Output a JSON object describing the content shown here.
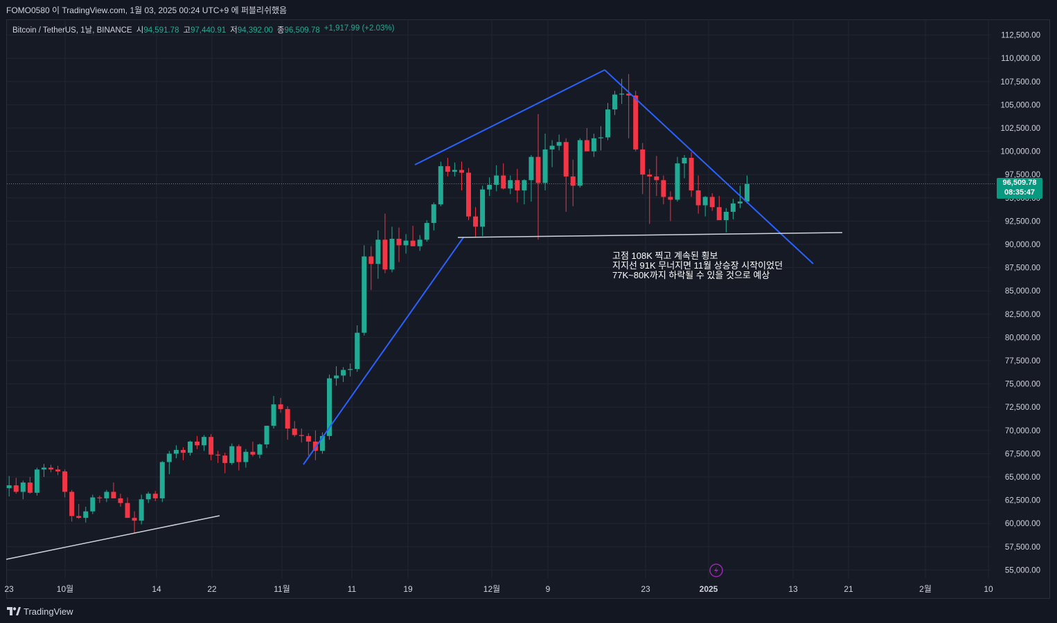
{
  "header": {
    "publish_text": "FOMO0580 이 TradingView.com, 1월 03, 2025 00:24 UTC+9 에 퍼블리쉬했음"
  },
  "legend": {
    "symbol": "Bitcoin / TetherUS, 1날, BINANCE",
    "open_label": "시",
    "open_value": "94,591.78",
    "high_label": "고",
    "high_value": "97,440.91",
    "low_label": "저",
    "low_value": "94,392.00",
    "close_label": "종",
    "close_value": "96,509.78",
    "change": "+1,917.99 (+2.03%)"
  },
  "price_tag": {
    "price": "96,509.78",
    "countdown": "08:35:47"
  },
  "annotation": {
    "line1": "고점 108K 찍고 계속된 횡보",
    "line2": "지지선 91K 무너지면 11월 상승장 시작이었던",
    "line3": "77K~80K까지 하락될 수 있을 것으로 예상"
  },
  "footer": {
    "brand": "TradingView"
  },
  "colors": {
    "up": "#22ab94",
    "down": "#f23645",
    "trendline_blue": "#2962ff",
    "support_line": "#d1d4dc",
    "background": "#161a25",
    "grid": "#232632"
  },
  "chart_data": {
    "type": "candlestick",
    "symbol": "BTC/USDT",
    "interval": "1D",
    "ylim": [
      54000,
      113500
    ],
    "y_ticks": [
      "112,500.00",
      "110,000.00",
      "107,500.00",
      "105,000.00",
      "102,500.00",
      "100,000.00",
      "97,500.00",
      "95,000.00",
      "92,500.00",
      "90,000.00",
      "87,500.00",
      "85,000.00",
      "82,500.00",
      "80,000.00",
      "77,500.00",
      "75,000.00",
      "72,500.00",
      "70,000.00",
      "67,500.00",
      "65,000.00",
      "62,500.00",
      "60,000.00",
      "57,500.00",
      "55,000.00"
    ],
    "x_ticks": [
      "23",
      "10월",
      "14",
      "22",
      "11월",
      "11",
      "19",
      "12월",
      "9",
      "23",
      "2025",
      "13",
      "21",
      "2월",
      "10"
    ],
    "x_tick_bold": [
      "2025"
    ],
    "current_price": 96509.78,
    "candles": [
      {
        "o": 63800,
        "h": 65100,
        "l": 62900,
        "c": 64100
      },
      {
        "o": 64100,
        "h": 64900,
        "l": 63200,
        "c": 63400
      },
      {
        "o": 63400,
        "h": 64600,
        "l": 62600,
        "c": 64400
      },
      {
        "o": 64400,
        "h": 65000,
        "l": 63200,
        "c": 63300
      },
      {
        "o": 63300,
        "h": 66000,
        "l": 63000,
        "c": 65800
      },
      {
        "o": 65800,
        "h": 66400,
        "l": 65000,
        "c": 66000
      },
      {
        "o": 66000,
        "h": 66300,
        "l": 65500,
        "c": 65800
      },
      {
        "o": 65800,
        "h": 66200,
        "l": 65200,
        "c": 65600
      },
      {
        "o": 65600,
        "h": 65800,
        "l": 62800,
        "c": 63400
      },
      {
        "o": 63400,
        "h": 63600,
        "l": 60200,
        "c": 60800
      },
      {
        "o": 60800,
        "h": 62100,
        "l": 60500,
        "c": 60600
      },
      {
        "o": 60600,
        "h": 61800,
        "l": 60100,
        "c": 61300
      },
      {
        "o": 61300,
        "h": 63100,
        "l": 61000,
        "c": 62800
      },
      {
        "o": 62800,
        "h": 63000,
        "l": 62200,
        "c": 62700
      },
      {
        "o": 62700,
        "h": 63600,
        "l": 62300,
        "c": 63400
      },
      {
        "o": 63400,
        "h": 64400,
        "l": 62900,
        "c": 62700
      },
      {
        "o": 62700,
        "h": 63200,
        "l": 61800,
        "c": 62200
      },
      {
        "o": 62200,
        "h": 62800,
        "l": 60800,
        "c": 60600
      },
      {
        "o": 60600,
        "h": 61300,
        "l": 58900,
        "c": 60300
      },
      {
        "o": 60300,
        "h": 63100,
        "l": 59900,
        "c": 62600
      },
      {
        "o": 62600,
        "h": 63400,
        "l": 62200,
        "c": 63200
      },
      {
        "o": 63200,
        "h": 63500,
        "l": 62400,
        "c": 62700
      },
      {
        "o": 62700,
        "h": 66700,
        "l": 62300,
        "c": 66600
      },
      {
        "o": 66600,
        "h": 67800,
        "l": 65300,
        "c": 67500
      },
      {
        "o": 67500,
        "h": 68400,
        "l": 67000,
        "c": 67900
      },
      {
        "o": 67900,
        "h": 68200,
        "l": 66800,
        "c": 67600
      },
      {
        "o": 67600,
        "h": 68900,
        "l": 67300,
        "c": 68800
      },
      {
        "o": 68800,
        "h": 69400,
        "l": 68000,
        "c": 68400
      },
      {
        "o": 68400,
        "h": 69500,
        "l": 67800,
        "c": 69300
      },
      {
        "o": 69300,
        "h": 69600,
        "l": 66800,
        "c": 67400
      },
      {
        "o": 67400,
        "h": 67800,
        "l": 66500,
        "c": 67300
      },
      {
        "o": 67300,
        "h": 67600,
        "l": 65400,
        "c": 66500
      },
      {
        "o": 66500,
        "h": 68600,
        "l": 66300,
        "c": 68300
      },
      {
        "o": 68300,
        "h": 68500,
        "l": 65700,
        "c": 66600
      },
      {
        "o": 66600,
        "h": 68000,
        "l": 66000,
        "c": 67700
      },
      {
        "o": 67700,
        "h": 68800,
        "l": 67200,
        "c": 67400
      },
      {
        "o": 67400,
        "h": 68600,
        "l": 67000,
        "c": 68500
      },
      {
        "o": 68500,
        "h": 70500,
        "l": 68100,
        "c": 70500
      },
      {
        "o": 70500,
        "h": 73700,
        "l": 70200,
        "c": 72800
      },
      {
        "o": 72800,
        "h": 73500,
        "l": 71900,
        "c": 72300
      },
      {
        "o": 72300,
        "h": 72600,
        "l": 69000,
        "c": 70200
      },
      {
        "o": 70200,
        "h": 71000,
        "l": 69300,
        "c": 69500
      },
      {
        "o": 69500,
        "h": 70200,
        "l": 68700,
        "c": 69400
      },
      {
        "o": 69400,
        "h": 69700,
        "l": 67300,
        "c": 68800
      },
      {
        "o": 68800,
        "h": 70000,
        "l": 66800,
        "c": 67800
      },
      {
        "o": 67800,
        "h": 69800,
        "l": 67500,
        "c": 69400
      },
      {
        "o": 69400,
        "h": 76000,
        "l": 69000,
        "c": 75600
      },
      {
        "o": 75600,
        "h": 76900,
        "l": 74800,
        "c": 75900
      },
      {
        "o": 75900,
        "h": 76800,
        "l": 75200,
        "c": 76500
      },
      {
        "o": 76500,
        "h": 77200,
        "l": 75800,
        "c": 76600
      },
      {
        "o": 76600,
        "h": 81300,
        "l": 76300,
        "c": 80500
      },
      {
        "o": 80500,
        "h": 89900,
        "l": 80200,
        "c": 88700
      },
      {
        "o": 88700,
        "h": 89800,
        "l": 85100,
        "c": 87900
      },
      {
        "o": 87900,
        "h": 91500,
        "l": 86300,
        "c": 90500
      },
      {
        "o": 90500,
        "h": 93300,
        "l": 86900,
        "c": 87300
      },
      {
        "o": 87300,
        "h": 91900,
        "l": 87000,
        "c": 90600
      },
      {
        "o": 90600,
        "h": 91800,
        "l": 88100,
        "c": 89900
      },
      {
        "o": 89900,
        "h": 91100,
        "l": 89000,
        "c": 90400
      },
      {
        "o": 90400,
        "h": 92000,
        "l": 89800,
        "c": 89800
      },
      {
        "o": 89800,
        "h": 91000,
        "l": 89300,
        "c": 90500
      },
      {
        "o": 90500,
        "h": 92600,
        "l": 90300,
        "c": 92300
      },
      {
        "o": 92300,
        "h": 94500,
        "l": 91500,
        "c": 94300
      },
      {
        "o": 94300,
        "h": 98900,
        "l": 94100,
        "c": 98400
      },
      {
        "o": 98400,
        "h": 99300,
        "l": 97300,
        "c": 97800
      },
      {
        "o": 97800,
        "h": 98800,
        "l": 97300,
        "c": 98000
      },
      {
        "o": 98000,
        "h": 98900,
        "l": 95800,
        "c": 97700
      },
      {
        "o": 97700,
        "h": 98200,
        "l": 92600,
        "c": 93000
      },
      {
        "o": 93000,
        "h": 94000,
        "l": 90800,
        "c": 91900
      },
      {
        "o": 91900,
        "h": 96300,
        "l": 90900,
        "c": 95900
      },
      {
        "o": 95900,
        "h": 97200,
        "l": 95200,
        "c": 96400
      },
      {
        "o": 96400,
        "h": 98500,
        "l": 95700,
        "c": 97400
      },
      {
        "o": 97400,
        "h": 98700,
        "l": 95900,
        "c": 96000
      },
      {
        "o": 96000,
        "h": 97400,
        "l": 95400,
        "c": 96900
      },
      {
        "o": 96900,
        "h": 98100,
        "l": 94500,
        "c": 95800
      },
      {
        "o": 95800,
        "h": 97000,
        "l": 94300,
        "c": 96900
      },
      {
        "o": 96900,
        "h": 99600,
        "l": 94600,
        "c": 99400
      },
      {
        "o": 99400,
        "h": 104000,
        "l": 90500,
        "c": 96600
      },
      {
        "o": 96600,
        "h": 101900,
        "l": 95800,
        "c": 100200
      },
      {
        "o": 100200,
        "h": 101200,
        "l": 98300,
        "c": 100600
      },
      {
        "o": 100600,
        "h": 101800,
        "l": 100100,
        "c": 101000
      },
      {
        "o": 101000,
        "h": 101400,
        "l": 93500,
        "c": 97300
      },
      {
        "o": 97300,
        "h": 99100,
        "l": 94100,
        "c": 96300
      },
      {
        "o": 96300,
        "h": 101400,
        "l": 96100,
        "c": 101200
      },
      {
        "o": 101200,
        "h": 102500,
        "l": 100300,
        "c": 100000
      },
      {
        "o": 100000,
        "h": 101900,
        "l": 99400,
        "c": 101400
      },
      {
        "o": 101400,
        "h": 102700,
        "l": 100100,
        "c": 101500
      },
      {
        "o": 101500,
        "h": 105200,
        "l": 101200,
        "c": 104500
      },
      {
        "o": 104500,
        "h": 106500,
        "l": 103900,
        "c": 106100
      },
      {
        "o": 106100,
        "h": 107800,
        "l": 105100,
        "c": 106200
      },
      {
        "o": 106200,
        "h": 108300,
        "l": 101400,
        "c": 106000
      },
      {
        "o": 106000,
        "h": 106500,
        "l": 100000,
        "c": 100200
      },
      {
        "o": 100200,
        "h": 100900,
        "l": 95400,
        "c": 97500
      },
      {
        "o": 97500,
        "h": 98100,
        "l": 92200,
        "c": 97300
      },
      {
        "o": 97300,
        "h": 99500,
        "l": 95200,
        "c": 96900
      },
      {
        "o": 96900,
        "h": 97400,
        "l": 94300,
        "c": 95100
      },
      {
        "o": 95100,
        "h": 95700,
        "l": 92500,
        "c": 94800
      },
      {
        "o": 94800,
        "h": 99400,
        "l": 94600,
        "c": 98700
      },
      {
        "o": 98700,
        "h": 99600,
        "l": 97100,
        "c": 99300
      },
      {
        "o": 99300,
        "h": 99900,
        "l": 95100,
        "c": 95800
      },
      {
        "o": 95800,
        "h": 97400,
        "l": 93300,
        "c": 94200
      },
      {
        "o": 94200,
        "h": 95200,
        "l": 93000,
        "c": 95100
      },
      {
        "o": 95100,
        "h": 95500,
        "l": 93600,
        "c": 94000
      },
      {
        "o": 94000,
        "h": 95200,
        "l": 92800,
        "c": 92600
      },
      {
        "o": 92600,
        "h": 93900,
        "l": 91300,
        "c": 93500
      },
      {
        "o": 93500,
        "h": 94900,
        "l": 92700,
        "c": 94400
      },
      {
        "o": 94400,
        "h": 96300,
        "l": 93900,
        "c": 94600
      },
      {
        "o": 94600,
        "h": 97400,
        "l": 94400,
        "c": 96500
      }
    ]
  }
}
